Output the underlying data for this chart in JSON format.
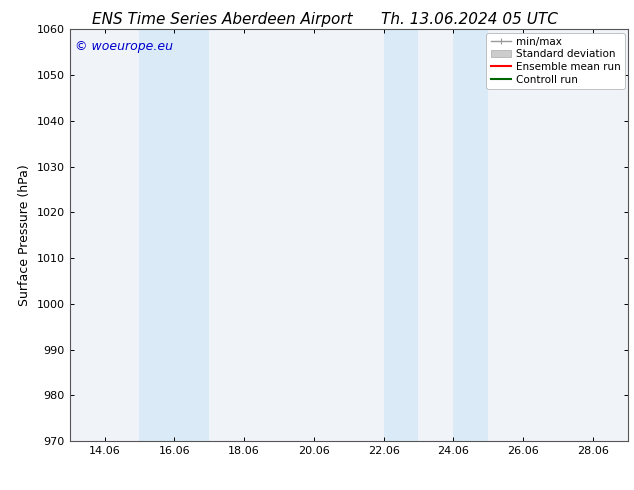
{
  "title_left": "ENS Time Series Aberdeen Airport",
  "title_right": "Th. 13.06.2024 05 UTC",
  "ylabel": "Surface Pressure (hPa)",
  "xlim": [
    13.06,
    29.06
  ],
  "ylim": [
    970,
    1060
  ],
  "yticks": [
    970,
    980,
    990,
    1000,
    1010,
    1020,
    1030,
    1040,
    1050,
    1060
  ],
  "xtick_labels": [
    "14.06",
    "16.06",
    "18.06",
    "20.06",
    "22.06",
    "24.06",
    "26.06",
    "28.06"
  ],
  "xtick_positions": [
    14.06,
    16.06,
    18.06,
    20.06,
    22.06,
    24.06,
    26.06,
    28.06
  ],
  "shaded_bands": [
    {
      "xmin": 15.06,
      "xmax": 17.06
    },
    {
      "xmin": 22.06,
      "xmax": 23.06
    },
    {
      "xmin": 24.06,
      "xmax": 25.06
    }
  ],
  "shade_color": "#daeaf7",
  "watermark": "© woeurope.eu",
  "watermark_color": "#0000cc",
  "legend_items": [
    {
      "label": "min/max",
      "color": "#999999",
      "lw": 1.0
    },
    {
      "label": "Standard deviation",
      "color": "#cccccc",
      "lw": 5
    },
    {
      "label": "Ensemble mean run",
      "color": "#ff0000",
      "lw": 1.5
    },
    {
      "label": "Controll run",
      "color": "#006600",
      "lw": 1.5
    }
  ],
  "bg_color": "#ffffff",
  "plot_bg_color": "#f0f4f8",
  "title_fontsize": 11,
  "label_fontsize": 9,
  "tick_fontsize": 8,
  "watermark_fontsize": 9,
  "legend_fontsize": 7.5
}
